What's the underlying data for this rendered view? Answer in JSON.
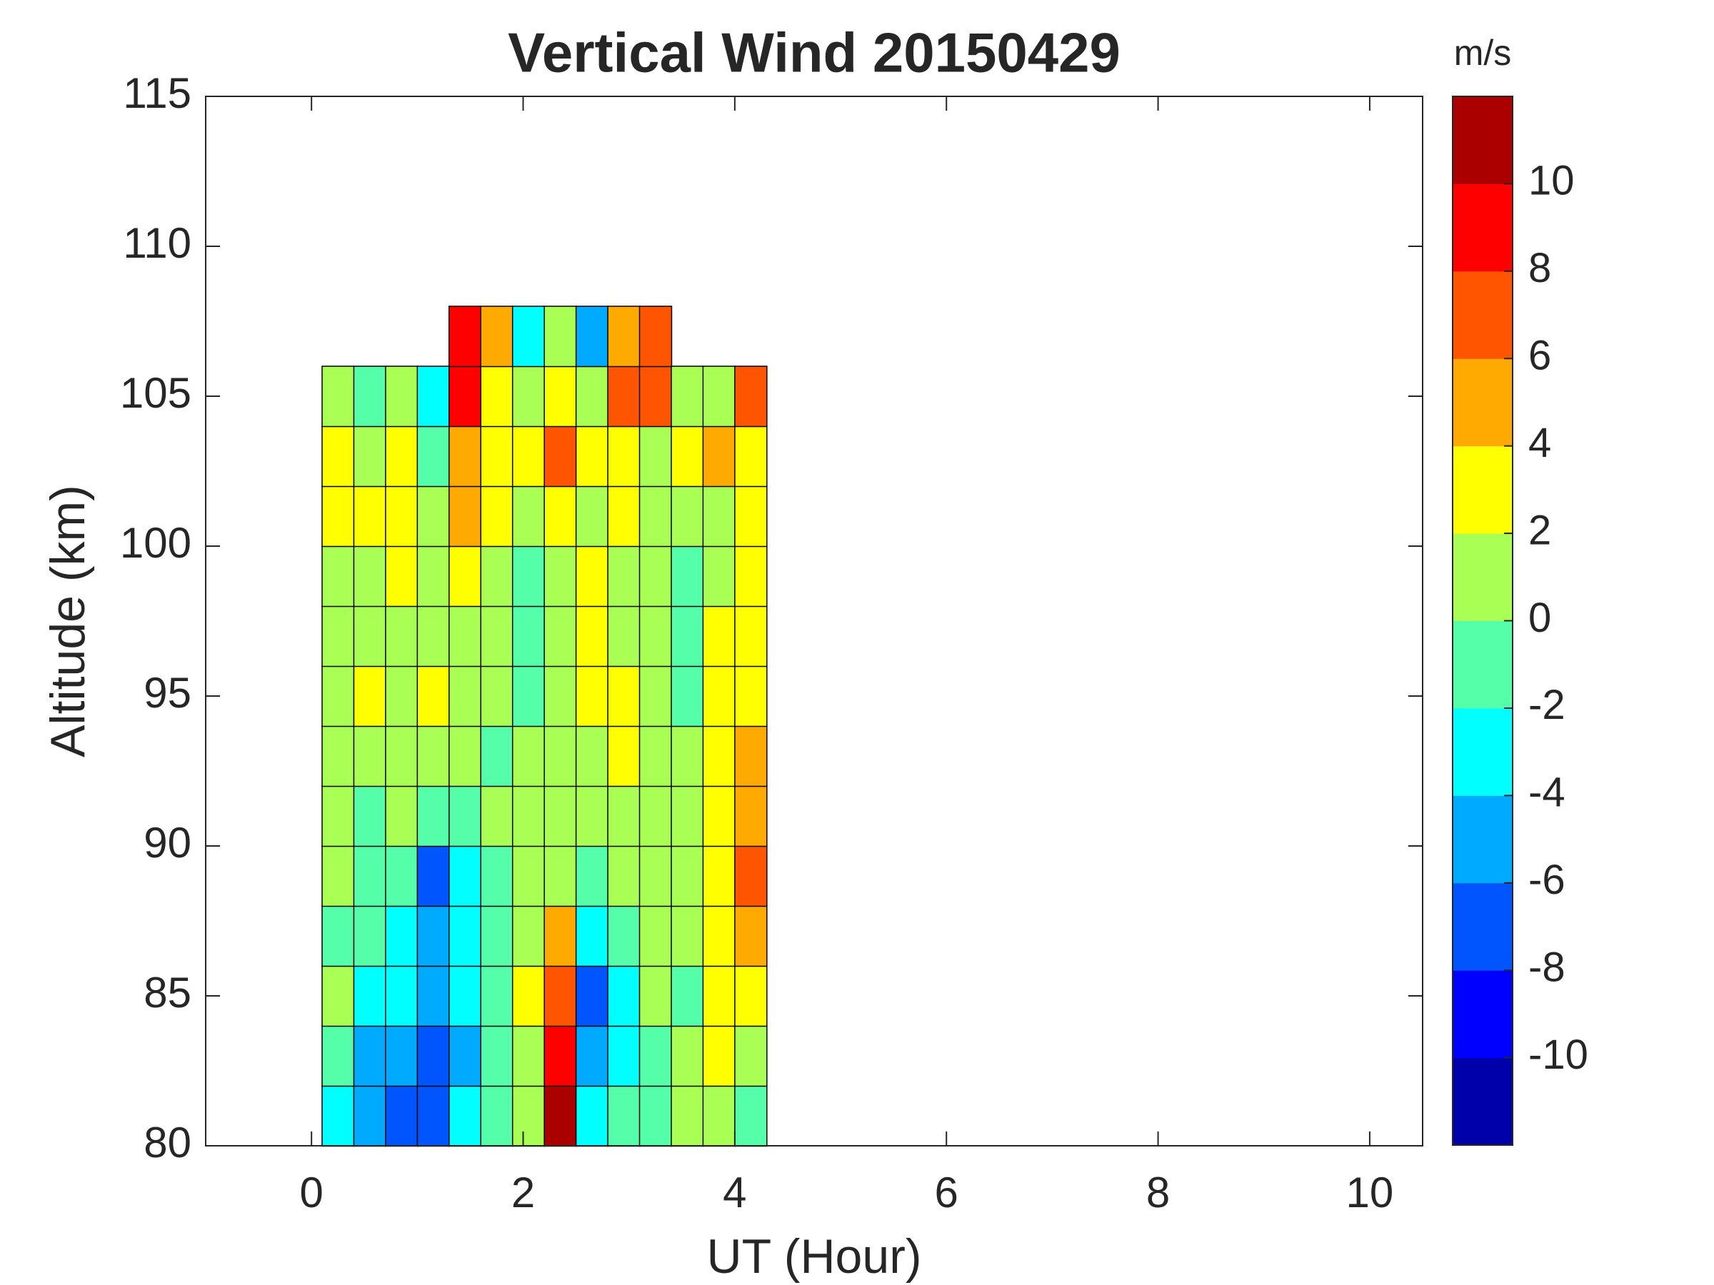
{
  "chart_data": {
    "type": "contour",
    "title": "Vertical Wind 20150429",
    "xlabel": "UT (Hour)",
    "ylabel": "Altitude (km)",
    "xlim": [
      -1,
      10.5
    ],
    "xticks": [
      0,
      2,
      4,
      6,
      8,
      10
    ],
    "ylim": [
      80,
      115
    ],
    "yticks": [
      80,
      85,
      90,
      95,
      100,
      105,
      110,
      115
    ],
    "x": [
      0.25,
      0.55,
      0.85,
      1.15,
      1.45,
      1.75,
      2.05,
      2.35,
      2.65,
      2.95,
      3.25,
      3.55,
      3.85,
      4.15
    ],
    "y": [
      81,
      83,
      85,
      87,
      89,
      91,
      93,
      95,
      97,
      99,
      101,
      103,
      105,
      107
    ],
    "z": [
      [
        -3,
        -5,
        -7,
        -7,
        -3,
        -1,
        1,
        11,
        -3,
        -1,
        -1,
        1,
        1,
        -1
      ],
      [
        -1,
        -5,
        -5,
        -7,
        -5,
        -1,
        1,
        9,
        -5,
        -3,
        -1,
        1,
        3,
        1
      ],
      [
        1,
        -3,
        -3,
        -5,
        -3,
        -1,
        3,
        7,
        -7,
        -3,
        1,
        -1,
        3,
        3
      ],
      [
        -1,
        -1,
        -3,
        -5,
        -3,
        -1,
        1,
        5,
        -3,
        -1,
        1,
        1,
        3,
        5
      ],
      [
        1,
        -1,
        -1,
        -7,
        -3,
        -1,
        1,
        1,
        -1,
        1,
        1,
        1,
        3,
        7
      ],
      [
        1,
        -1,
        1,
        -1,
        -1,
        1,
        1,
        1,
        1,
        1,
        1,
        1,
        3,
        5
      ],
      [
        1,
        1,
        1,
        1,
        1,
        -1,
        1,
        1,
        1,
        3,
        1,
        1,
        3,
        5
      ],
      [
        1,
        3,
        1,
        3,
        1,
        1,
        -1,
        1,
        3,
        3,
        1,
        -1,
        3,
        3
      ],
      [
        1,
        1,
        1,
        1,
        1,
        1,
        -1,
        1,
        3,
        1,
        1,
        -1,
        3,
        3
      ],
      [
        1,
        1,
        3,
        1,
        3,
        1,
        -1,
        1,
        3,
        1,
        1,
        -1,
        1,
        3
      ],
      [
        3,
        3,
        3,
        1,
        5,
        3,
        1,
        3,
        1,
        3,
        1,
        1,
        1,
        3
      ],
      [
        3,
        1,
        3,
        -1,
        5,
        3,
        3,
        7,
        3,
        3,
        1,
        3,
        5,
        3
      ],
      [
        1,
        -1,
        1,
        -3,
        9,
        3,
        1,
        3,
        1,
        7,
        7,
        1,
        1,
        7
      ],
      [
        null,
        null,
        null,
        null,
        9,
        5,
        -3,
        1,
        -5,
        5,
        7,
        null,
        null,
        null
      ]
    ],
    "colorbar": {
      "label": "m/s",
      "lim": [
        -12,
        12
      ],
      "ticks": [
        -10,
        -8,
        -6,
        -4,
        -2,
        0,
        2,
        4,
        6,
        8,
        10
      ],
      "colors": [
        "#0000aa",
        "#0000ff",
        "#0055ff",
        "#00aaff",
        "#00ffff",
        "#55ffaa",
        "#aaff55",
        "#ffff00",
        "#ffaa00",
        "#ff5500",
        "#ff0000",
        "#aa0000"
      ]
    }
  }
}
